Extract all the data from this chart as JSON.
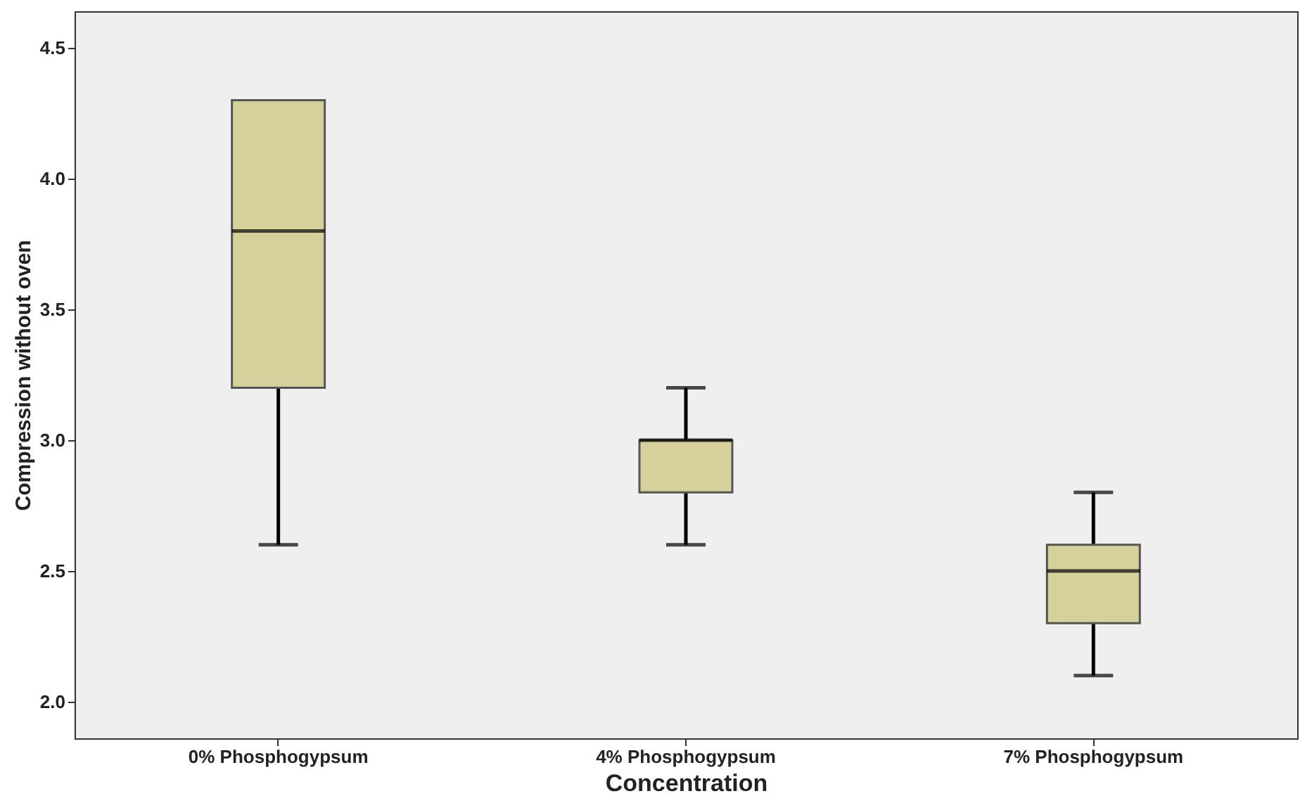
{
  "chart_data": {
    "type": "box",
    "xlabel": "Concentration",
    "ylabel": "Compression without oven",
    "categories": [
      "0% Phosphogypsum",
      "4% Phosphogypsum",
      "7% Phosphogypsum"
    ],
    "series": [
      {
        "color": "#d6d19a",
        "boxes": [
          {
            "low": 2.6,
            "q1": 3.2,
            "median": 3.8,
            "q3": 4.3,
            "high": 4.3
          },
          {
            "low": 2.6,
            "q1": 2.8,
            "median": 3.0,
            "q3": 3.0,
            "high": 3.2
          },
          {
            "low": 2.1,
            "q1": 2.3,
            "median": 2.5,
            "q3": 2.6,
            "high": 2.8
          }
        ]
      }
    ],
    "ylim": [
      1.86,
      4.64
    ],
    "yticks": [
      {
        "value": 2.0,
        "label": "2.0"
      },
      {
        "value": 2.5,
        "label": "2.5"
      },
      {
        "value": 3.0,
        "label": "3.0"
      },
      {
        "value": 3.5,
        "label": "3.5"
      },
      {
        "value": 4.0,
        "label": "4.0"
      },
      {
        "value": 4.5,
        "label": "4.5"
      }
    ],
    "grid": false
  }
}
